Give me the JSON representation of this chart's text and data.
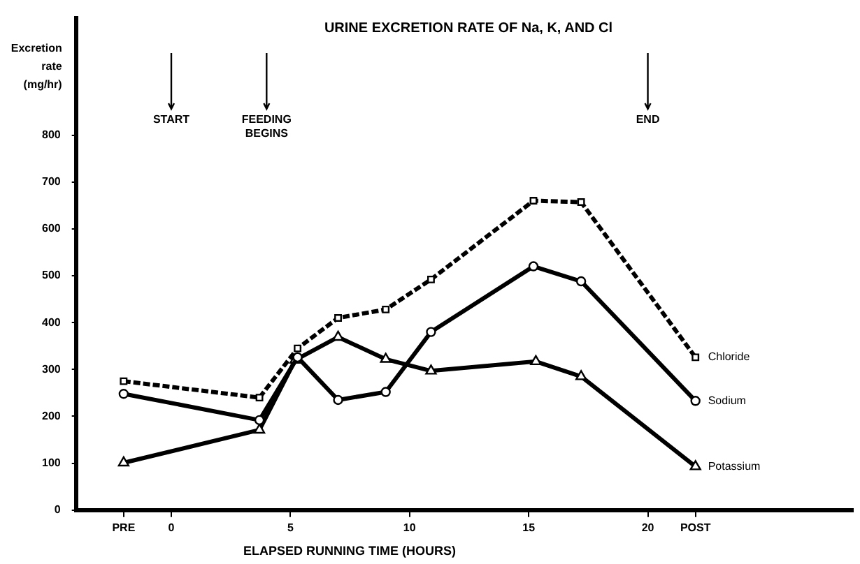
{
  "chart_data": {
    "type": "line",
    "title": "URINE EXCRETION RATE OF Na, K, AND Cl",
    "xlabel": "ELAPSED RUNNING TIME (HOURS)",
    "ylabel": "Excretion rate (mg/hr)",
    "xlim": [
      -4,
      28.6
    ],
    "xticks": [
      {
        "value": -2,
        "label": "PRE"
      },
      0,
      5,
      10,
      15,
      20,
      {
        "value": 22,
        "label": "POST"
      }
    ],
    "ylim": [
      0,
      1050
    ],
    "yticks": [
      0,
      100,
      200,
      300,
      400,
      500,
      600,
      700,
      800
    ],
    "grid": false,
    "legend": false,
    "series": [
      {
        "name": "Chloride",
        "color": "#000000",
        "marker": "square",
        "line_style": "dashed",
        "x": [
          -2,
          3.7,
          5.3,
          7,
          9,
          10.9,
          15.2,
          17.2,
          22
        ],
        "values": [
          275,
          240,
          345,
          410,
          428,
          492,
          660,
          657,
          326
        ]
      },
      {
        "name": "Sodium",
        "color": "#000000",
        "marker": "circle",
        "line_style": "solid",
        "x": [
          -2,
          3.7,
          5.3,
          7,
          9,
          10.9,
          15.2,
          17.2,
          22
        ],
        "values": [
          248,
          192,
          326,
          235,
          252,
          380,
          520,
          488,
          233
        ]
      },
      {
        "name": "Potassium",
        "color": "#000000",
        "marker": "triangle",
        "line_style": "solid",
        "x": [
          -2,
          3.7,
          5.2,
          7,
          9,
          10.9,
          15.3,
          17.2,
          22
        ],
        "values": [
          101,
          171,
          320,
          369,
          322,
          297,
          317,
          285,
          93
        ]
      }
    ],
    "ref_lines": [
      {
        "axis": "x",
        "value": 0,
        "label": "START"
      },
      {
        "axis": "x",
        "value": 4,
        "label": "FEEDING BEGINS"
      },
      {
        "axis": "x",
        "value": 20,
        "label": "END"
      }
    ]
  }
}
